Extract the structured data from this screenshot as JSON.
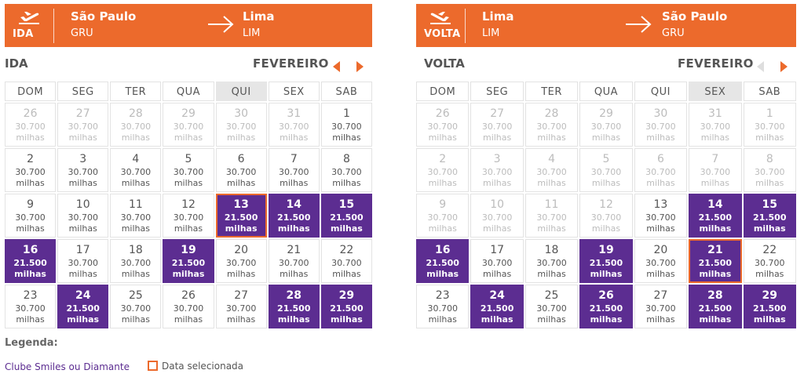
{
  "colors": {
    "brand_orange": "#ec6a2c",
    "promo_purple": "#5c2d91",
    "muted_text": "#bcbcbc"
  },
  "weekdays": [
    "DOM",
    "SEG",
    "TER",
    "QUA",
    "QUI",
    "SEX",
    "SAB"
  ],
  "outbound": {
    "direction": "IDA",
    "origin_city": "São Paulo",
    "origin_code": "GRU",
    "dest_city": "Lima",
    "dest_code": "LIM",
    "label": "IDA",
    "month": "FEVEREIRO",
    "highlight_weekday": 4,
    "prev_enabled": true,
    "cells": [
      {
        "day": "26",
        "price": "30.700",
        "unit": "milhas",
        "state": "off"
      },
      {
        "day": "27",
        "price": "30.700",
        "unit": "milhas",
        "state": "off"
      },
      {
        "day": "28",
        "price": "30.700",
        "unit": "milhas",
        "state": "off"
      },
      {
        "day": "29",
        "price": "30.700",
        "unit": "milhas",
        "state": "off"
      },
      {
        "day": "30",
        "price": "30.700",
        "unit": "milhas",
        "state": "off"
      },
      {
        "day": "31",
        "price": "30.700",
        "unit": "milhas",
        "state": "off"
      },
      {
        "day": "1",
        "price": "30.700",
        "unit": "milhas",
        "state": "normal"
      },
      {
        "day": "2",
        "price": "30.700",
        "unit": "milhas",
        "state": "normal"
      },
      {
        "day": "3",
        "price": "30.700",
        "unit": "milhas",
        "state": "normal"
      },
      {
        "day": "4",
        "price": "30.700",
        "unit": "milhas",
        "state": "normal"
      },
      {
        "day": "5",
        "price": "30.700",
        "unit": "milhas",
        "state": "normal"
      },
      {
        "day": "6",
        "price": "30.700",
        "unit": "milhas",
        "state": "normal"
      },
      {
        "day": "7",
        "price": "30.700",
        "unit": "milhas",
        "state": "normal"
      },
      {
        "day": "8",
        "price": "30.700",
        "unit": "milhas",
        "state": "normal"
      },
      {
        "day": "9",
        "price": "30.700",
        "unit": "milhas",
        "state": "normal"
      },
      {
        "day": "10",
        "price": "30.700",
        "unit": "milhas",
        "state": "normal"
      },
      {
        "day": "11",
        "price": "30.700",
        "unit": "milhas",
        "state": "normal"
      },
      {
        "day": "12",
        "price": "30.700",
        "unit": "milhas",
        "state": "normal"
      },
      {
        "day": "13",
        "price": "21.500",
        "unit": "milhas",
        "state": "promo",
        "selected": true
      },
      {
        "day": "14",
        "price": "21.500",
        "unit": "milhas",
        "state": "promo"
      },
      {
        "day": "15",
        "price": "21.500",
        "unit": "milhas",
        "state": "promo"
      },
      {
        "day": "16",
        "price": "21.500",
        "unit": "milhas",
        "state": "promo"
      },
      {
        "day": "17",
        "price": "30.700",
        "unit": "milhas",
        "state": "normal"
      },
      {
        "day": "18",
        "price": "30.700",
        "unit": "milhas",
        "state": "normal"
      },
      {
        "day": "19",
        "price": "21.500",
        "unit": "milhas",
        "state": "promo"
      },
      {
        "day": "20",
        "price": "30.700",
        "unit": "milhas",
        "state": "normal"
      },
      {
        "day": "21",
        "price": "30.700",
        "unit": "milhas",
        "state": "normal"
      },
      {
        "day": "22",
        "price": "30.700",
        "unit": "milhas",
        "state": "normal"
      },
      {
        "day": "23",
        "price": "30.700",
        "unit": "milhas",
        "state": "normal"
      },
      {
        "day": "24",
        "price": "21.500",
        "unit": "milhas",
        "state": "promo"
      },
      {
        "day": "25",
        "price": "30.700",
        "unit": "milhas",
        "state": "normal"
      },
      {
        "day": "26",
        "price": "30.700",
        "unit": "milhas",
        "state": "normal"
      },
      {
        "day": "27",
        "price": "30.700",
        "unit": "milhas",
        "state": "normal"
      },
      {
        "day": "28",
        "price": "21.500",
        "unit": "milhas",
        "state": "promo"
      },
      {
        "day": "29",
        "price": "21.500",
        "unit": "milhas",
        "state": "promo"
      }
    ]
  },
  "return": {
    "direction": "VOLTA",
    "origin_city": "Lima",
    "origin_code": "LIM",
    "dest_city": "São Paulo",
    "dest_code": "GRU",
    "label": "VOLTA",
    "month": "FEVEREIRO",
    "highlight_weekday": 5,
    "prev_enabled": false,
    "cells": [
      {
        "day": "26",
        "price": "30.700",
        "unit": "milhas",
        "state": "off"
      },
      {
        "day": "27",
        "price": "30.700",
        "unit": "milhas",
        "state": "off"
      },
      {
        "day": "28",
        "price": "30.700",
        "unit": "milhas",
        "state": "off"
      },
      {
        "day": "29",
        "price": "30.700",
        "unit": "milhas",
        "state": "off"
      },
      {
        "day": "30",
        "price": "30.700",
        "unit": "milhas",
        "state": "off"
      },
      {
        "day": "31",
        "price": "30.700",
        "unit": "milhas",
        "state": "off"
      },
      {
        "day": "1",
        "price": "30.700",
        "unit": "milhas",
        "state": "off"
      },
      {
        "day": "2",
        "price": "30.700",
        "unit": "milhas",
        "state": "off"
      },
      {
        "day": "3",
        "price": "30.700",
        "unit": "milhas",
        "state": "off"
      },
      {
        "day": "4",
        "price": "30.700",
        "unit": "milhas",
        "state": "off"
      },
      {
        "day": "5",
        "price": "30.700",
        "unit": "milhas",
        "state": "off"
      },
      {
        "day": "6",
        "price": "30.700",
        "unit": "milhas",
        "state": "off"
      },
      {
        "day": "7",
        "price": "30.700",
        "unit": "milhas",
        "state": "off"
      },
      {
        "day": "8",
        "price": "30.700",
        "unit": "milhas",
        "state": "off"
      },
      {
        "day": "9",
        "price": "30.700",
        "unit": "milhas",
        "state": "off"
      },
      {
        "day": "10",
        "price": "30.700",
        "unit": "milhas",
        "state": "off"
      },
      {
        "day": "11",
        "price": "30.700",
        "unit": "milhas",
        "state": "off"
      },
      {
        "day": "12",
        "price": "30.700",
        "unit": "milhas",
        "state": "off"
      },
      {
        "day": "13",
        "price": "30.700",
        "unit": "milhas",
        "state": "normal"
      },
      {
        "day": "14",
        "price": "21.500",
        "unit": "milhas",
        "state": "promo"
      },
      {
        "day": "15",
        "price": "21.500",
        "unit": "milhas",
        "state": "promo"
      },
      {
        "day": "16",
        "price": "21.500",
        "unit": "milhas",
        "state": "promo"
      },
      {
        "day": "17",
        "price": "30.700",
        "unit": "milhas",
        "state": "normal"
      },
      {
        "day": "18",
        "price": "30.700",
        "unit": "milhas",
        "state": "normal"
      },
      {
        "day": "19",
        "price": "21.500",
        "unit": "milhas",
        "state": "promo"
      },
      {
        "day": "20",
        "price": "30.700",
        "unit": "milhas",
        "state": "normal"
      },
      {
        "day": "21",
        "price": "21.500",
        "unit": "milhas",
        "state": "promo",
        "selected": true
      },
      {
        "day": "22",
        "price": "30.700",
        "unit": "milhas",
        "state": "normal"
      },
      {
        "day": "23",
        "price": "30.700",
        "unit": "milhas",
        "state": "normal"
      },
      {
        "day": "24",
        "price": "21.500",
        "unit": "milhas",
        "state": "promo"
      },
      {
        "day": "25",
        "price": "30.700",
        "unit": "milhas",
        "state": "normal"
      },
      {
        "day": "26",
        "price": "21.500",
        "unit": "milhas",
        "state": "promo"
      },
      {
        "day": "27",
        "price": "30.700",
        "unit": "milhas",
        "state": "normal"
      },
      {
        "day": "28",
        "price": "21.500",
        "unit": "milhas",
        "state": "promo"
      },
      {
        "day": "29",
        "price": "21.500",
        "unit": "milhas",
        "state": "promo"
      }
    ]
  },
  "legend": {
    "title": "Legenda:",
    "promo_label": "Clube Smiles ou Diamante",
    "selected_label": "Data selecionada"
  }
}
